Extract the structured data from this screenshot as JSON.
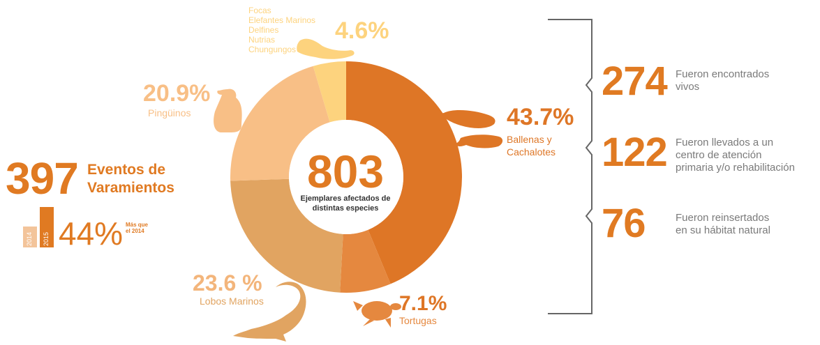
{
  "colors": {
    "ballenas": "#de7626",
    "tortugas": "#e5883f",
    "lobos": "#e1a461",
    "pinguinos": "#f8bf86",
    "focas": "#fdd37e",
    "text_orange": "#e07a22",
    "text_gray": "#7a7a7a",
    "bracket": "#666666"
  },
  "center": {
    "number": "803",
    "line1": "Ejemplares afectados de",
    "line2": "distintas especies"
  },
  "chart_data": {
    "type": "pie",
    "donut": true,
    "slices": [
      {
        "label": "Ballenas y Cachalotes",
        "value": 43.7,
        "display": "43.7%"
      },
      {
        "label": "Tortugas",
        "value": 7.1,
        "display": "7.1%"
      },
      {
        "label": "Lobos Marinos",
        "value": 23.6,
        "display": "23.6 %"
      },
      {
        "label": "Pingüinos",
        "value": 20.9,
        "display": "20.9%"
      },
      {
        "label": "Focas, Elefantes Marinos, Delfines, Nutrias, Chungungos",
        "value": 4.6,
        "display": "4.6%"
      }
    ]
  },
  "labels": {
    "ballenas_line1": "Ballenas y",
    "ballenas_line2": "Cachalotes",
    "tortugas": "Tortugas",
    "lobos": "Lobos Marinos",
    "pinguinos": "Pingüinos",
    "focas_list": [
      "Focas",
      "Elefantes Marinos",
      "Delfines",
      "Nutrias",
      "Chungungos"
    ]
  },
  "events": {
    "number": "397",
    "line1": "Eventos de",
    "line2": "Varamientos",
    "year_a": "2014",
    "year_b": "2015",
    "increase": "44%",
    "increase_note_line1": "Más que",
    "increase_note_line2": "el 2014"
  },
  "stats": [
    {
      "number": "274",
      "line1": "Fueron encontrados",
      "line2": "vivos",
      "line3": ""
    },
    {
      "number": "122",
      "line1": "Fueron llevados a un",
      "line2": "centro de atención",
      "line3": "primaria y/o rehabilitación"
    },
    {
      "number": "76",
      "line1": "Fueron reinsertados",
      "line2": "en su hábitat natural",
      "line3": ""
    }
  ]
}
